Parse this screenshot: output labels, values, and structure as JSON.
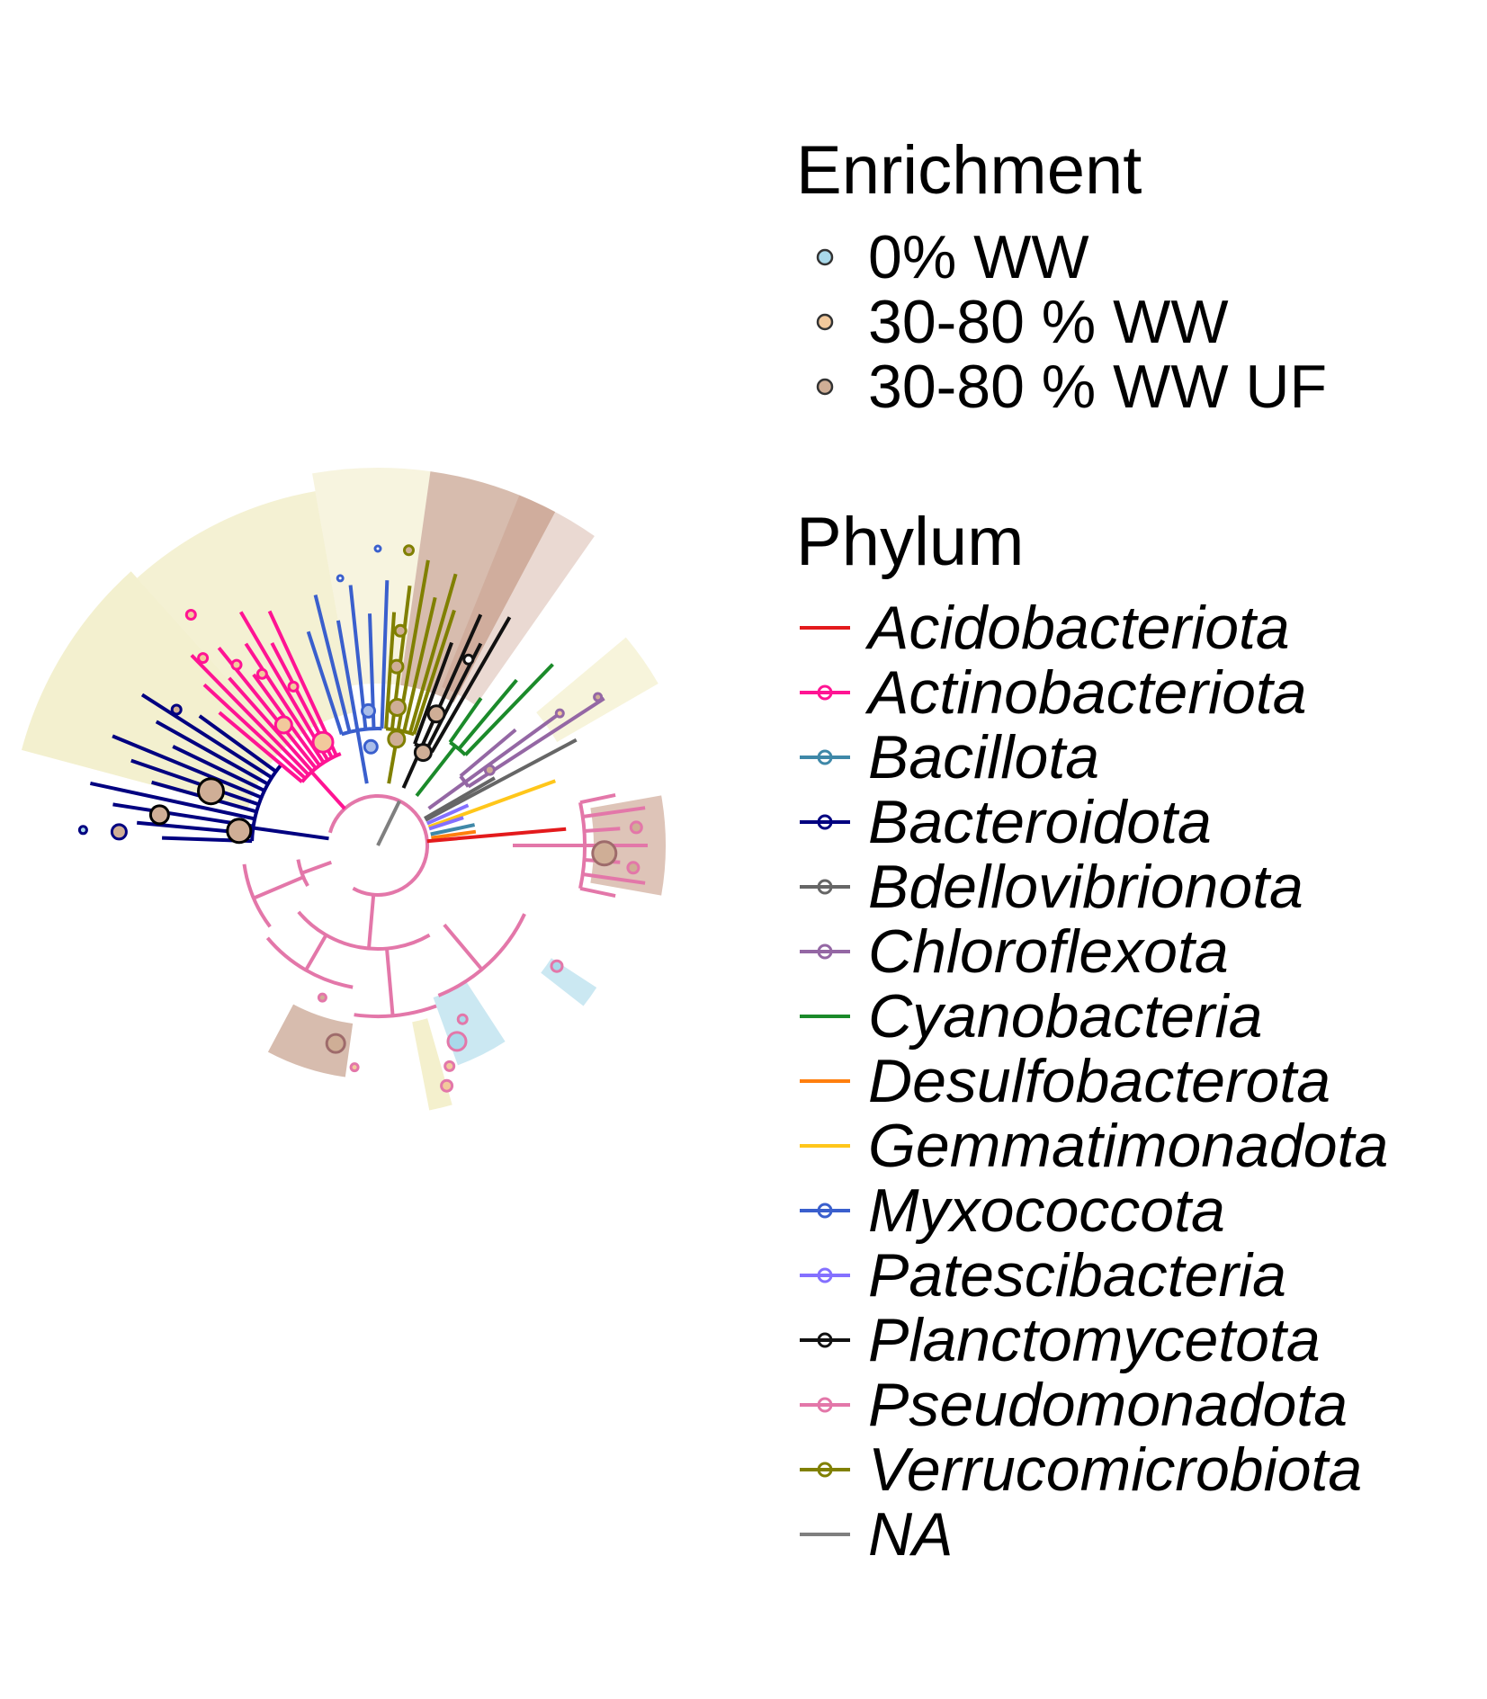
{
  "legends": {
    "enrichment": {
      "title": "Enrichment",
      "items": [
        {
          "label": "0% WW",
          "color": "#a9d9ea"
        },
        {
          "label": "30-80 % WW",
          "color": "#f2c99c"
        },
        {
          "label": "30-80 % WW UF",
          "color": "#cfae96"
        }
      ]
    },
    "phylum": {
      "title": "Phylum",
      "items": [
        {
          "label": "Acidobacteriota",
          "color": "#e31a1c",
          "point": false
        },
        {
          "label": "Actinobacteriota",
          "color": "#ff1493",
          "point": true
        },
        {
          "label": "Bacillota",
          "color": "#3f88a8",
          "point": true
        },
        {
          "label": "Bacteroidota",
          "color": "#000080",
          "point": true
        },
        {
          "label": "Bdellovibrionota",
          "color": "#666666",
          "point": true
        },
        {
          "label": "Chloroflexota",
          "color": "#9467a4",
          "point": true
        },
        {
          "label": "Cyanobacteria",
          "color": "#1b8a2a",
          "point": false
        },
        {
          "label": "Desulfobacterota",
          "color": "#ff7f0e",
          "point": false
        },
        {
          "label": "Gemmatimonadota",
          "color": "#ffc61a",
          "point": false
        },
        {
          "label": "Myxococcota",
          "color": "#3a5fcd",
          "point": true
        },
        {
          "label": "Patescibacteria",
          "color": "#8470ff",
          "point": true
        },
        {
          "label": "Planctomycetota",
          "color": "#111111",
          "point": true
        },
        {
          "label": "Pseudomonadota",
          "color": "#e377a9",
          "point": true
        },
        {
          "label": "Verrucomicrobiota",
          "color": "#808000",
          "point": true
        },
        {
          "label": "NA",
          "color": "#7f7f7f",
          "point": false
        }
      ]
    }
  }
}
